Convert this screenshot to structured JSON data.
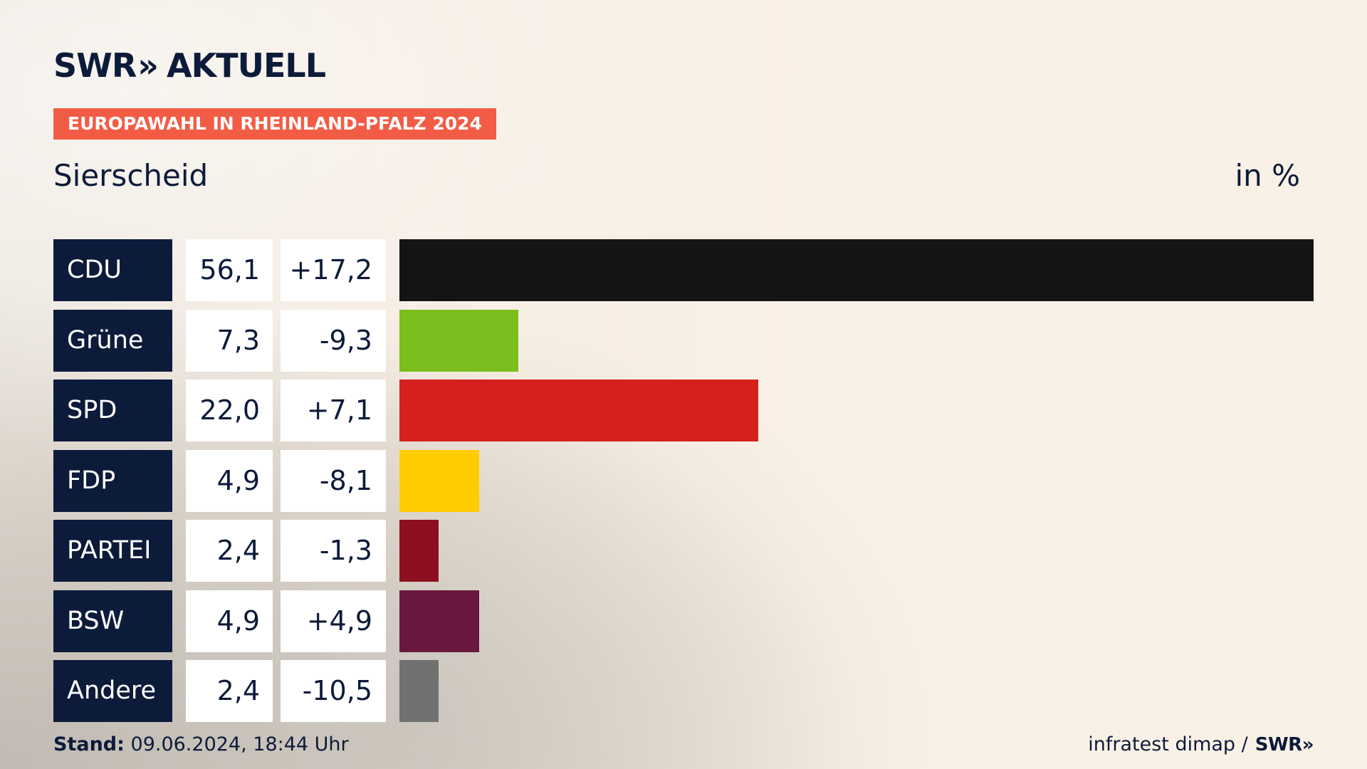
{
  "header": {
    "logo_swr": "SWR",
    "logo_chevrons": "»",
    "logo_aktuell": "AKTUELL",
    "subtitle": "EUROPAWAHL IN RHEINLAND-PFALZ 2024",
    "place": "Sierscheid",
    "unit": "in %"
  },
  "footer": {
    "stand_label": "Stand:",
    "stand_value": "09.06.2024, 18:44 Uhr",
    "source": "infratest dimap /",
    "source_logo": "SWR»"
  },
  "chart_data": {
    "type": "bar",
    "orientation": "horizontal",
    "categories": [
      "CDU",
      "Grüne",
      "SPD",
      "FDP",
      "PARTEI",
      "BSW",
      "Andere"
    ],
    "values": [
      56.1,
      7.3,
      22.0,
      4.9,
      2.4,
      4.9,
      2.4
    ],
    "value_labels": [
      "56,1",
      "7,3",
      "22,0",
      "4,9",
      "2,4",
      "4,9",
      "2,4"
    ],
    "changes": [
      17.2,
      -9.3,
      7.1,
      -8.1,
      -1.3,
      4.9,
      -10.5
    ],
    "change_labels": [
      "+17,2",
      "-9,3",
      "+7,1",
      "-8,1",
      "-1,3",
      "+4,9",
      "-10,5"
    ],
    "colors": [
      "#141414",
      "#7abf1e",
      "#d62020",
      "#ffcc00",
      "#8c1020",
      "#6b1840",
      "#717171"
    ],
    "title": "Sierscheid",
    "ylabel": "in %",
    "xlim": [
      0,
      56.1
    ],
    "grid": false
  }
}
